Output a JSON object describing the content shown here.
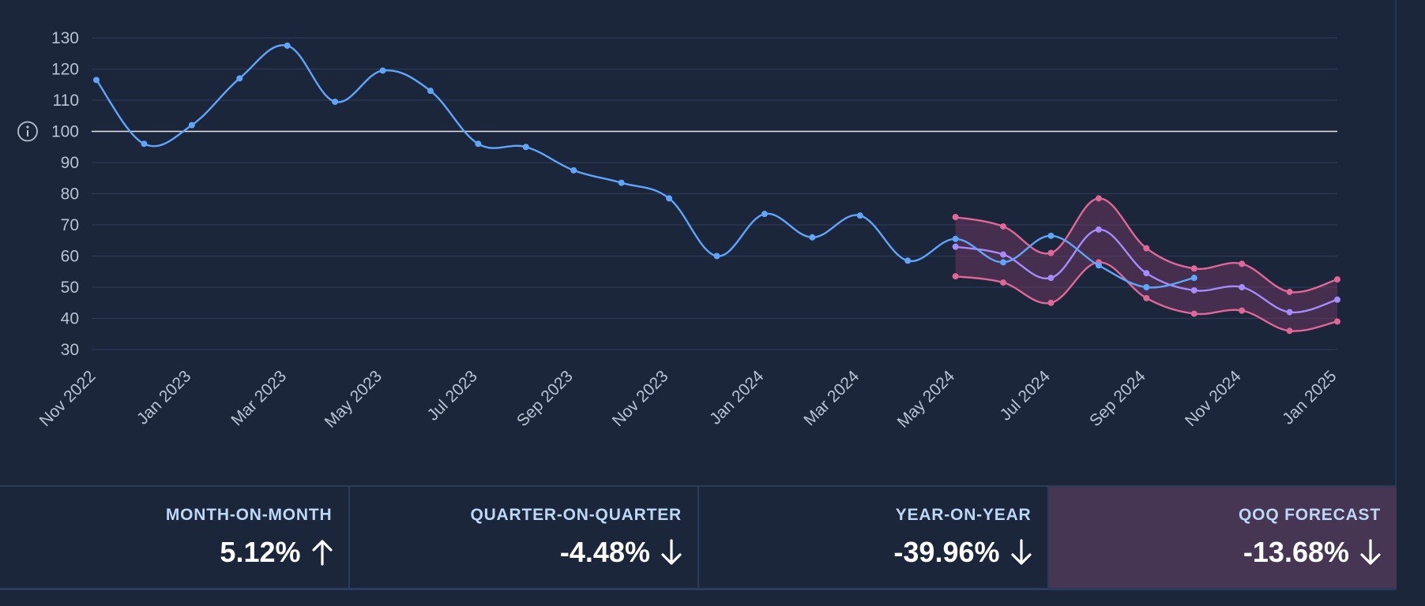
{
  "chart_data": {
    "type": "line",
    "x_tick_labels": [
      "Nov 2022",
      "Jan 2023",
      "Mar 2023",
      "May 2023",
      "Jul 2023",
      "Sep 2023",
      "Nov 2023",
      "Jan 2024",
      "Mar 2024",
      "May 2024",
      "Jul 2024",
      "Sep 2024",
      "Nov 2024",
      "Jan 2025"
    ],
    "y_ticks": [
      30,
      40,
      50,
      60,
      70,
      80,
      90,
      100,
      110,
      120,
      130
    ],
    "ylim": [
      30,
      130
    ],
    "x_range": [
      "Nov 2022",
      "Jan 2025"
    ],
    "reference_line": 100,
    "grid": true,
    "series": [
      {
        "color": "#60a5fa",
        "x": [
          "2022-11",
          "2022-12",
          "2023-01",
          "2023-02",
          "2023-03",
          "2023-04",
          "2023-05",
          "2023-06",
          "2023-07",
          "2023-08",
          "2023-09",
          "2023-10",
          "2023-11",
          "2023-12",
          "2024-01",
          "2024-02",
          "2024-03",
          "2024-04",
          "2024-05",
          "2024-06",
          "2024-07",
          "2024-08",
          "2024-09",
          "2024-10"
        ],
        "values": [
          116.5,
          96,
          102,
          117,
          127.5,
          109.5,
          119.5,
          113,
          96,
          95,
          87.5,
          83.5,
          78.5,
          60,
          73.5,
          66,
          73,
          58.5,
          65.5,
          58,
          66.5,
          57,
          50,
          53
        ]
      },
      {
        "color": "#a78bfa",
        "x": [
          "2024-05",
          "2024-06",
          "2024-07",
          "2024-08",
          "2024-09",
          "2024-10",
          "2024-11",
          "2024-12",
          "2025-01"
        ],
        "values": [
          63,
          60.5,
          53,
          68.5,
          54.5,
          49,
          50,
          42,
          46
        ]
      },
      {
        "color": "#e0679a",
        "x": [
          "2024-05",
          "2024-06",
          "2024-07",
          "2024-08",
          "2024-09",
          "2024-10",
          "2024-11",
          "2024-12",
          "2025-01"
        ],
        "values": [
          72.5,
          69.5,
          61,
          78.5,
          62.5,
          56,
          57.5,
          48.5,
          52.5
        ]
      },
      {
        "color": "#e0679a",
        "x": [
          "2024-05",
          "2024-06",
          "2024-07",
          "2024-08",
          "2024-09",
          "2024-10",
          "2024-11",
          "2024-12",
          "2025-01"
        ],
        "values": [
          53.5,
          51.5,
          45,
          58,
          46.5,
          41.5,
          42.5,
          36,
          39
        ]
      }
    ]
  },
  "colors": {
    "background": "#1b263b",
    "grid": "#2d3b55",
    "axis_text": "#b8c2d3",
    "reference": "#e5e7eb",
    "band_fill": "#7a3a66"
  },
  "info_icon": "info-circle-icon",
  "stats": [
    {
      "label": "MONTH-ON-MONTH",
      "value": "5.12%",
      "direction": "up",
      "icon": "arrow-up-icon"
    },
    {
      "label": "QUARTER-ON-QUARTER",
      "value": "-4.48%",
      "direction": "down",
      "icon": "arrow-down-icon"
    },
    {
      "label": "YEAR-ON-YEAR",
      "value": "-39.96%",
      "direction": "down",
      "icon": "arrow-down-icon"
    },
    {
      "label": "QOQ FORECAST",
      "value": "-13.68%",
      "direction": "down",
      "icon": "arrow-down-icon"
    }
  ]
}
